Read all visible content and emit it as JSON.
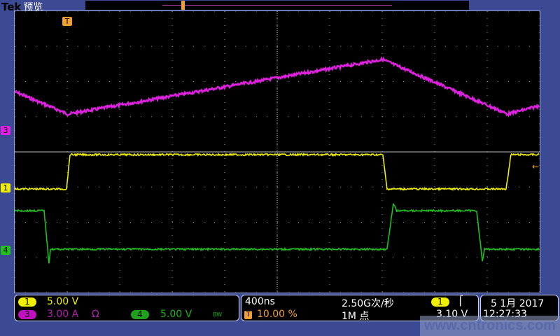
{
  "header": {
    "brand": "Tek",
    "mode": "预览"
  },
  "colors": {
    "ch1": "#f0f000",
    "ch3": "#e020e0",
    "ch4": "#20c020",
    "trigger": "#f0a030",
    "grid": "#8890a8"
  },
  "markers": {
    "trigger": "T",
    "ch1": "1",
    "ch3": "3",
    "ch4": "4"
  },
  "channels": {
    "ch1": {
      "label": "1",
      "scale": "5.00 V"
    },
    "ch3": {
      "label": "3",
      "scale": "3.00 A",
      "extra": "Ω"
    },
    "ch4": {
      "label": "4",
      "scale": "5.00 V",
      "extra": "BW"
    }
  },
  "timebase": {
    "scale": "400ns",
    "trigger_pos": "10.00 %",
    "sample_rate": "2.50G次/秒",
    "record_length": "1M 点"
  },
  "trigger": {
    "source": "1",
    "slope_icon": "rising-edge",
    "level": "3.10 V"
  },
  "datetime": {
    "date": "5 1月  2017",
    "time": "12:27:33"
  },
  "watermark": "www.cntronics.com",
  "waveforms": {
    "x_unit": "ns",
    "x_range": [
      -400,
      3600
    ],
    "ch3": {
      "unit": "A",
      "points": [
        [
          -400,
          3.42
        ],
        [
          5,
          1.5
        ],
        [
          2405,
          6.18
        ],
        [
          3355,
          1.5
        ],
        [
          3600,
          2.22
        ]
      ]
    },
    "ch1": {
      "unit": "V",
      "points": [
        [
          -400,
          0
        ],
        [
          -5,
          0
        ],
        [
          21,
          4.9
        ],
        [
          2405,
          4.9
        ],
        [
          2437,
          0
        ],
        [
          3344,
          0
        ],
        [
          3381,
          4.9
        ],
        [
          3600,
          4.9
        ]
      ]
    },
    "ch4": {
      "unit": "V",
      "points": [
        [
          -400,
          5.7
        ],
        [
          -176,
          5.7
        ],
        [
          -139,
          -1.8
        ],
        [
          -128,
          0.2
        ],
        [
          2437,
          0.2
        ],
        [
          2485,
          6.7
        ],
        [
          2510,
          5.7
        ],
        [
          3120,
          5.7
        ],
        [
          3163,
          -1.5
        ],
        [
          3180,
          0.2
        ],
        [
          3600,
          0.2
        ]
      ]
    }
  }
}
